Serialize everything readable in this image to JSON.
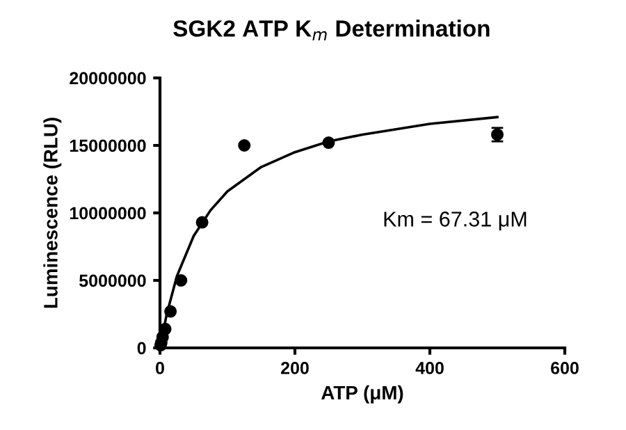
{
  "chart_data": {
    "type": "scatter",
    "title": "SGK2 ATP K$_{m}$ Determination",
    "xlabel": "ATP (μM)",
    "ylabel": "Luminescence (RLU)",
    "series": [
      {
        "color": "#000000",
        "marker": "circle",
        "x": [
          0.98,
          1.95,
          3.9,
          7.8,
          15.6,
          31.25,
          62.5,
          125,
          250,
          500
        ],
        "values": [
          200000,
          400000,
          800000,
          1400000,
          2700000,
          5000000,
          9300000,
          15000000,
          15200000,
          15800000
        ],
        "errors": [
          null,
          null,
          null,
          null,
          null,
          null,
          null,
          null,
          null,
          500000
        ]
      },
      {
        "type": "line",
        "color": "#000000",
        "line_style": "solid",
        "x": [
          0,
          10,
          25,
          50,
          75,
          100,
          150,
          200,
          250,
          300,
          400,
          500
        ],
        "values": [
          0,
          2500000,
          5300000,
          8300000,
          10200000,
          11600000,
          13400000,
          14500000,
          15300000,
          15800000,
          16600000,
          17100000
        ]
      }
    ],
    "annotations": [
      "Km = 67.31 μM"
    ],
    "xlim": [
      0,
      600
    ],
    "xticks": [
      0,
      200,
      400,
      600
    ],
    "ylim": [
      0,
      20000000
    ],
    "yticks": [
      0,
      5000000,
      10000000,
      15000000,
      20000000
    ],
    "grid": false,
    "legend": false
  }
}
